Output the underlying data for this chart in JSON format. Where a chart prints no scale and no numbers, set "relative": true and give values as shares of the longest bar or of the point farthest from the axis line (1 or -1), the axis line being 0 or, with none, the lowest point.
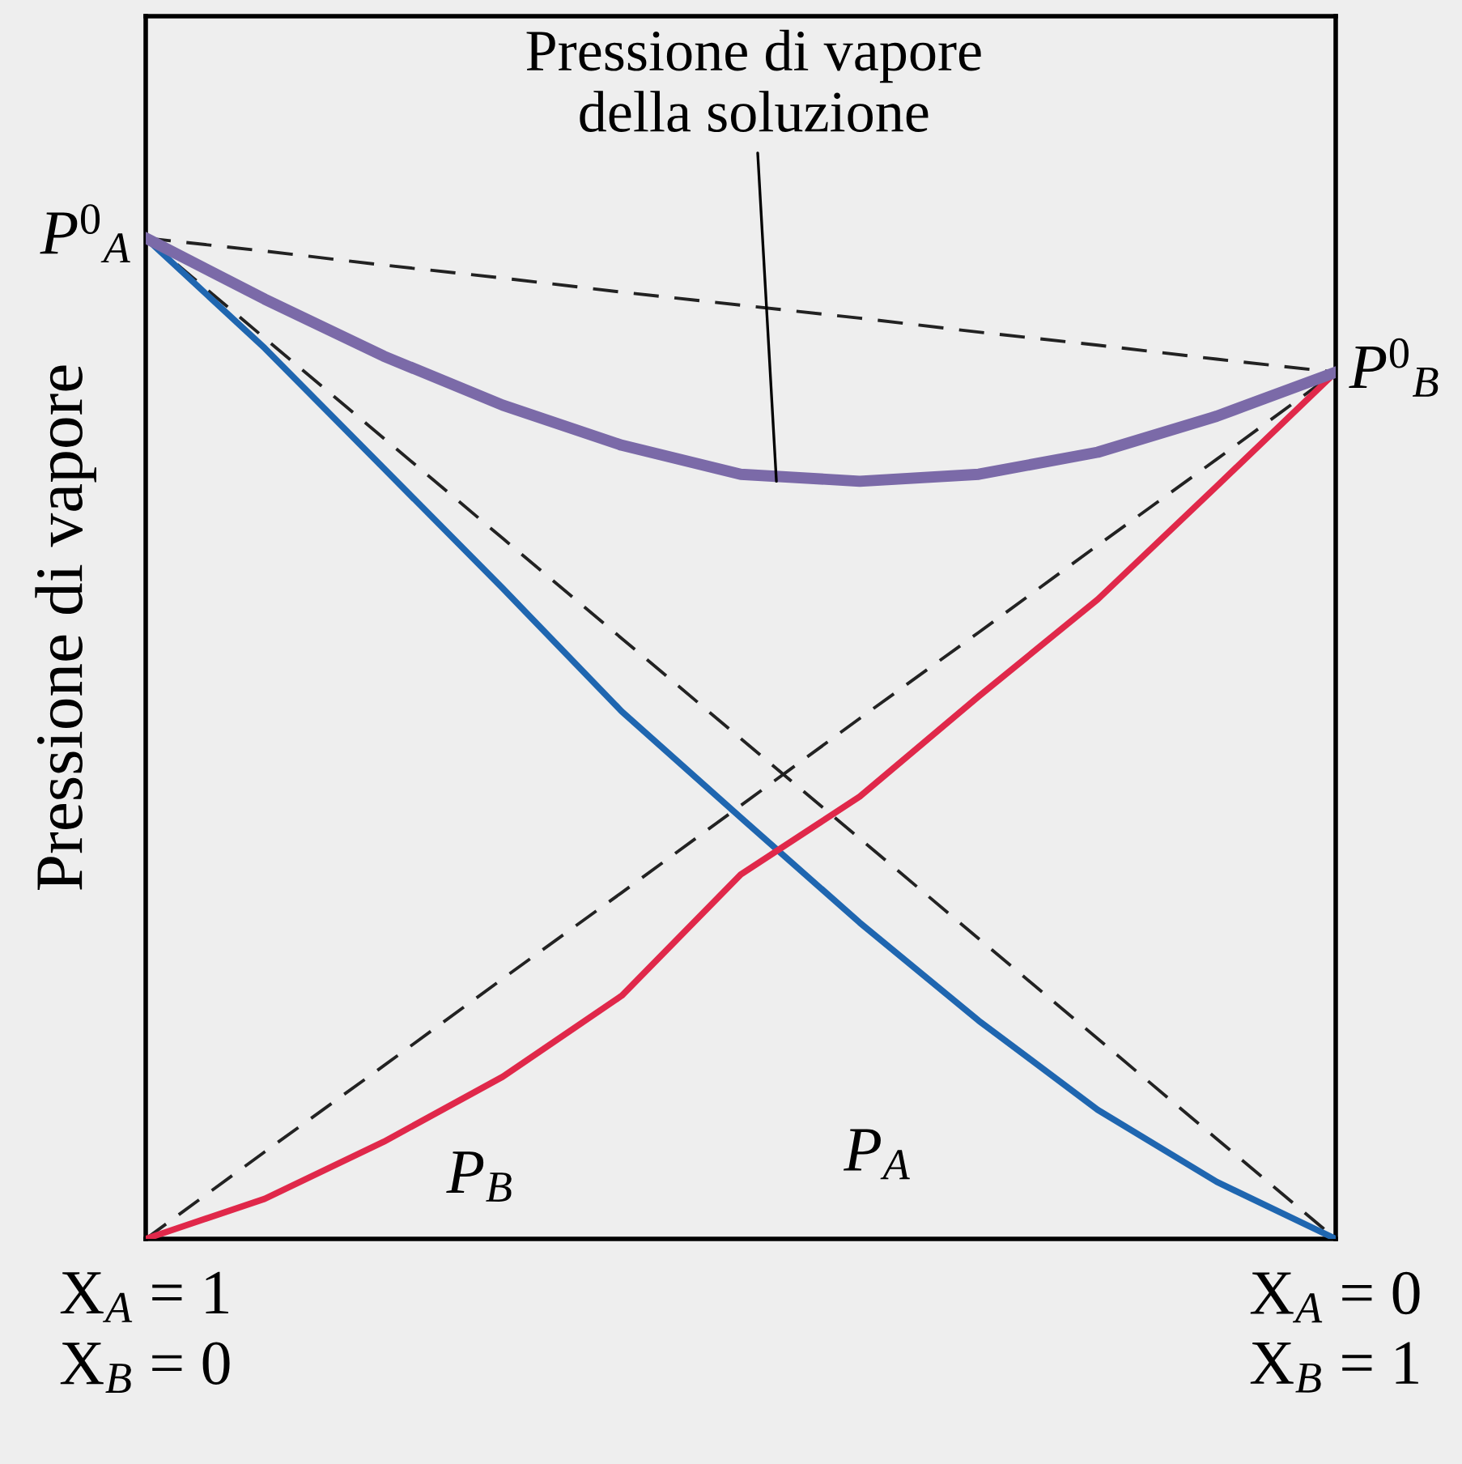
{
  "chart_data": {
    "type": "line",
    "relative": true,
    "ylabel": "Pressione di vapore",
    "categories": [
      "X$_{A}$ = 1\nX$_{B}$ = 0",
      null,
      null,
      null,
      null,
      null,
      null,
      null,
      null,
      null,
      "X$_{A}$ = 0\nX$_{B}$ = 1"
    ],
    "legend": false,
    "marker": "none",
    "series": [
      {
        "name": "P$_{A}$",
        "color": "#1f66b0",
        "line_style": "solid",
        "values": [
          1.0,
          0.89,
          0.77,
          0.65,
          0.527,
          0.421,
          0.316,
          0.218,
          0.129,
          0.057,
          0
        ]
      },
      {
        "name": "P$_{B}$",
        "color": "#e0284a",
        "line_style": "solid",
        "values": [
          0,
          0.04,
          0.097,
          0.162,
          0.243,
          0.364,
          0.442,
          0.542,
          0.639,
          0.752,
          0.866
        ]
      },
      {
        "name": "Pressione di vapore\ndella soluzione",
        "color": "#7b6aa8",
        "line_style": "solid",
        "values": [
          1.0,
          0.939,
          0.882,
          0.833,
          0.793,
          0.764,
          0.757,
          0.764,
          0.786,
          0.822,
          0.866
        ]
      },
      {
        "color": "#222222",
        "line_style": "dashed",
        "values": [
          1.0,
          0.9,
          0.8,
          0.7,
          0.6,
          0.5,
          0.4,
          0.3,
          0.2,
          0.1,
          0
        ]
      },
      {
        "color": "#222222",
        "line_style": "dashed",
        "values": [
          0,
          0.087,
          0.173,
          0.26,
          0.346,
          0.433,
          0.52,
          0.606,
          0.693,
          0.779,
          0.866
        ]
      },
      {
        "color": "#222222",
        "line_style": "dashed",
        "values": [
          1.0,
          0.987,
          0.973,
          0.96,
          0.946,
          0.933,
          0.92,
          0.906,
          0.893,
          0.879,
          0.866
        ]
      }
    ],
    "annotations": [
      {
        "text": "P$^{0}$$_{A}$",
        "x": "X$_{A}$ = 1\nX$_{B}$ = 0",
        "y": 1.0
      },
      {
        "text": "P$^{0}$$_{B}$",
        "x": "X$_{A}$ = 0\nX$_{B}$ = 1",
        "y": 0.866
      }
    ]
  }
}
